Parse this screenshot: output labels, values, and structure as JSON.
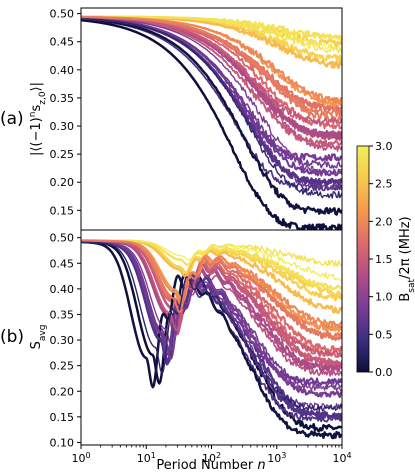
{
  "chart_data": [
    {
      "type": "line",
      "panel_label": "(a)",
      "ylabel": "|⟨(−1)ⁿs_z,0⟩|",
      "xscale": "log",
      "xlim": [
        1,
        10000
      ],
      "ylim": [
        0.115,
        0.51
      ],
      "yticks": [
        "0.15",
        "0.20",
        "0.25",
        "0.30",
        "0.35",
        "0.40",
        "0.45",
        "0.50"
      ],
      "grid": false,
      "n_curves": 30,
      "color_param_range": [
        0.0,
        3.0
      ],
      "series_description": "Curves start at 0.495 for n=1 and stay flat to n≈10^2, then decay; curves with low B_sat decay most strongly (to ≈0.13 at n=10^4), high B_sat curves remain near 0.42–0.48."
    },
    {
      "type": "line",
      "panel_label": "(b)",
      "ylabel": "S_avg",
      "xlabel": "Period Number n",
      "xscale": "log",
      "xlim": [
        1,
        10000
      ],
      "xticks": [
        "10^0",
        "10^1",
        "10^2",
        "10^3",
        "10^4"
      ],
      "ylim": [
        0.095,
        0.515
      ],
      "yticks": [
        "0.10",
        "0.15",
        "0.20",
        "0.25",
        "0.30",
        "0.35",
        "0.40",
        "0.45",
        "0.50"
      ],
      "grid": false,
      "n_curves": 30,
      "color_param_range": [
        0.0,
        3.0
      ],
      "series_description": "Curves start at 0.495, dip to a minimum between n≈10 and n≈30 (as low as ≈0.29), oscillate, then decay at large n down to ≈0.11 at n=10^4."
    }
  ],
  "colorbar": {
    "label": "B_sat/2π  (MHz)",
    "min": 0.0,
    "max": 3.0,
    "ticks": [
      "0.0",
      "0.5",
      "1.0",
      "1.5",
      "2.0",
      "2.5",
      "3.0"
    ],
    "colormap": "plasma-like (navy → purple → magenta → orange → yellow)",
    "colors": [
      "#0d0f3a",
      "#3d2e80",
      "#7a3c96",
      "#b34d86",
      "#de6a6a",
      "#f59a4c",
      "#f8c94c",
      "#f2ef5c"
    ]
  }
}
